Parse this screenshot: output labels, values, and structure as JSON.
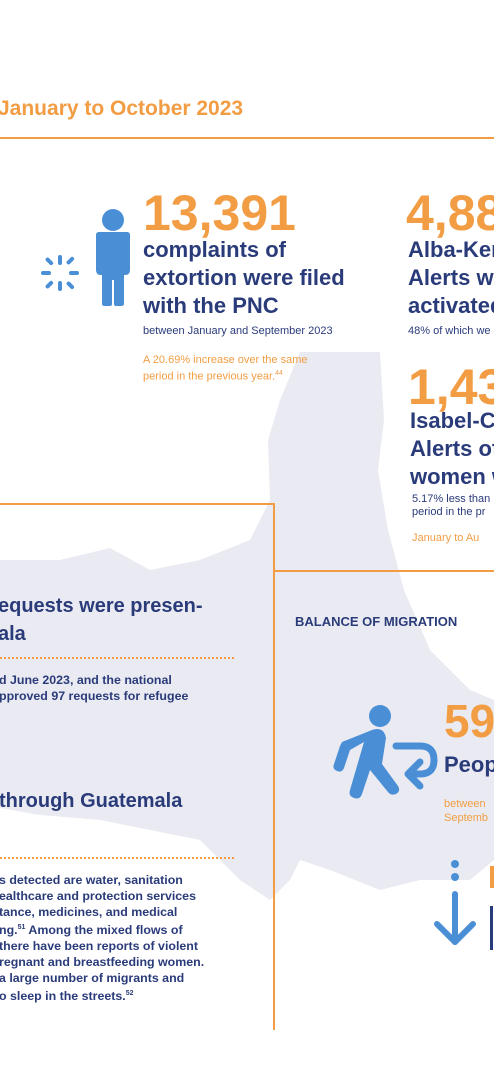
{
  "header": {
    "title": "January to October 2023"
  },
  "extortion": {
    "number": "13,391",
    "line1": "complaints of",
    "line2": "extortion were filed",
    "line3": "with the PNC",
    "period": "between January and September 2023",
    "note_line1": "A 20.69% increase over the same",
    "note_line2": "period in the previous year.",
    "note_ref": "44"
  },
  "alba_keneth": {
    "number": "4,88",
    "line1": "Alba-Ken",
    "line2": "Alerts we",
    "line3": "activated",
    "sub": "48% of which we"
  },
  "isabel_claudina": {
    "number": "1,43",
    "line1": "Isabel-Cla",
    "line2": "Alerts of",
    "line3": "women w",
    "note_line1": "5.17% less than",
    "note_line2": "period in the pr",
    "period": "January to Au"
  },
  "refugee": {
    "heading_line1": "equests were presen-",
    "heading_line2": "ala",
    "text_line1": "d June 2023, and the national",
    "text_line2": "pproved 97 requests for refugee"
  },
  "transit": {
    "heading": "through Guatemala",
    "lines": [
      "s detected are water, sanitation",
      "ealthcare and protection services",
      "tance, medicines, and medical",
      "ng.",
      "there have been reports of violent",
      "regnant and breastfeeding women.",
      "a large number of migrants and",
      "o sleep in the streets."
    ],
    "line4_ref": "51",
    "line4_rest": " Among the mixed flows of",
    "last_ref": "52"
  },
  "migration": {
    "label": "BALANCE OF MIGRATION",
    "number": "59",
    "people": "Peop",
    "period_line1": "between",
    "period_line2": "Septemb"
  },
  "icons": {
    "person": "person-alert-icon",
    "walker": "walking-return-icon",
    "arrow": "down-arrow-icon"
  },
  "colors": {
    "accent": "#f29d44",
    "text": "#2a3b7a",
    "icon": "#4a8fd6",
    "map": "#e9eaf2"
  }
}
